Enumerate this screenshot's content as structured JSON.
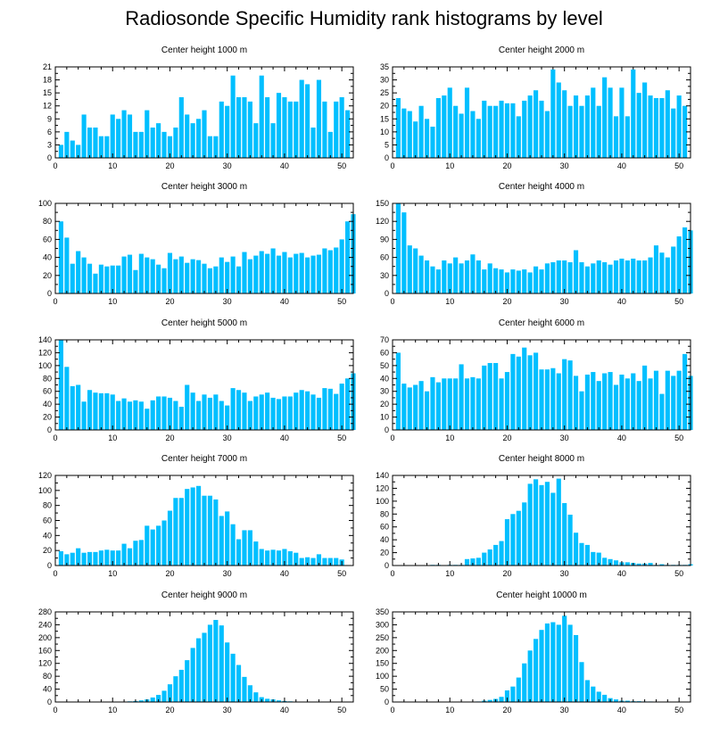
{
  "figure": {
    "title": "Radiosonde Specific Humidity rank histograms by level"
  },
  "colors": {
    "bar": "#00BFFF",
    "axis": "#000000"
  },
  "chart_data": [
    {
      "type": "bar",
      "title": "Center height 1000 m",
      "xlim": [
        0,
        52
      ],
      "ylim": [
        0,
        21
      ],
      "xticks": [
        0,
        10,
        20,
        30,
        40,
        50
      ],
      "yticks": [
        0,
        3,
        6,
        9,
        12,
        15,
        18,
        21
      ],
      "values": [
        3,
        6,
        4,
        3,
        10,
        7,
        7,
        5,
        5,
        10,
        9,
        11,
        10,
        6,
        6,
        11,
        7,
        8,
        6,
        5,
        7,
        14,
        10,
        8,
        9,
        11,
        5,
        5,
        13,
        12,
        19,
        14,
        14,
        13,
        8,
        19,
        14,
        8,
        15,
        14,
        13,
        13,
        18,
        17,
        7,
        18,
        13,
        6,
        13,
        14,
        11
      ]
    },
    {
      "type": "bar",
      "title": "Center height 2000 m",
      "xlim": [
        0,
        52
      ],
      "ylim": [
        0,
        35
      ],
      "xticks": [
        0,
        10,
        20,
        30,
        40,
        50
      ],
      "yticks": [
        0,
        5,
        10,
        15,
        20,
        25,
        30,
        35
      ],
      "values": [
        23,
        19,
        18,
        14,
        20,
        15,
        12,
        23,
        24,
        27,
        20,
        17,
        27,
        18,
        15,
        22,
        20,
        20,
        22,
        21,
        21,
        16,
        22,
        24,
        26,
        22,
        18,
        34,
        29,
        26,
        20,
        24,
        20,
        24,
        27,
        20,
        31,
        27,
        16,
        27,
        16,
        34,
        25,
        29,
        24,
        23,
        23,
        26,
        19,
        24,
        20
      ]
    },
    {
      "type": "bar",
      "title": "Center height 3000 m",
      "xlim": [
        0,
        52
      ],
      "ylim": [
        0,
        100
      ],
      "xticks": [
        0,
        10,
        20,
        30,
        40,
        50
      ],
      "yticks": [
        0,
        20,
        40,
        60,
        80,
        100
      ],
      "values": [
        80,
        62,
        33,
        47,
        40,
        33,
        22,
        32,
        30,
        31,
        31,
        41,
        43,
        26,
        44,
        40,
        38,
        32,
        28,
        45,
        38,
        41,
        34,
        38,
        37,
        33,
        28,
        30,
        40,
        35,
        41,
        30,
        46,
        38,
        42,
        47,
        44,
        50,
        42,
        46,
        40,
        44,
        45,
        40,
        42,
        43,
        50,
        48,
        51,
        60,
        80,
        88
      ]
    },
    {
      "type": "bar",
      "title": "Center height 4000 m",
      "xlim": [
        0,
        52
      ],
      "ylim": [
        0,
        150
      ],
      "xticks": [
        0,
        10,
        20,
        30,
        40,
        50
      ],
      "yticks": [
        0,
        30,
        60,
        90,
        120,
        150
      ],
      "values": [
        150,
        135,
        80,
        75,
        63,
        55,
        45,
        40,
        55,
        50,
        60,
        50,
        55,
        65,
        55,
        40,
        50,
        42,
        40,
        35,
        40,
        38,
        40,
        35,
        45,
        40,
        50,
        52,
        55,
        55,
        52,
        72,
        52,
        45,
        50,
        55,
        52,
        48,
        55,
        58,
        55,
        58,
        55,
        55,
        60,
        80,
        68,
        60,
        78,
        95,
        110,
        105
      ]
    },
    {
      "type": "bar",
      "title": "Center height 5000 m",
      "xlim": [
        0,
        52
      ],
      "ylim": [
        0,
        140
      ],
      "xticks": [
        0,
        10,
        20,
        30,
        40,
        50
      ],
      "yticks": [
        0,
        20,
        40,
        60,
        80,
        100,
        120,
        140
      ],
      "values": [
        140,
        98,
        68,
        70,
        44,
        62,
        58,
        57,
        57,
        55,
        45,
        49,
        44,
        46,
        44,
        33,
        46,
        52,
        52,
        50,
        45,
        36,
        70,
        58,
        45,
        55,
        50,
        55,
        45,
        38,
        65,
        62,
        58,
        45,
        52,
        55,
        58,
        50,
        48,
        52,
        52,
        58,
        62,
        60,
        55,
        50,
        65,
        64,
        56,
        72,
        80,
        88
      ]
    },
    {
      "type": "bar",
      "title": "Center height 6000 m",
      "xlim": [
        0,
        52
      ],
      "ylim": [
        0,
        70
      ],
      "xticks": [
        0,
        10,
        20,
        30,
        40,
        50
      ],
      "yticks": [
        0,
        10,
        20,
        30,
        40,
        50,
        60,
        70
      ],
      "values": [
        60,
        36,
        33,
        35,
        38,
        30,
        41,
        37,
        40,
        40,
        40,
        51,
        40,
        41,
        40,
        50,
        52,
        52,
        40,
        45,
        59,
        57,
        64,
        58,
        60,
        47,
        47,
        48,
        44,
        55,
        54,
        42,
        30,
        43,
        45,
        38,
        44,
        45,
        35,
        43,
        40,
        44,
        38,
        50,
        40,
        46,
        28,
        46,
        42,
        46,
        59,
        42
      ]
    },
    {
      "type": "bar",
      "title": "Center height 7000 m",
      "xlim": [
        0,
        52
      ],
      "ylim": [
        0,
        120
      ],
      "xticks": [
        0,
        10,
        20,
        30,
        40,
        50
      ],
      "yticks": [
        0,
        20,
        40,
        60,
        80,
        100,
        120
      ],
      "values": [
        19,
        15,
        17,
        23,
        17,
        18,
        18,
        20,
        21,
        20,
        20,
        29,
        23,
        33,
        34,
        53,
        48,
        53,
        60,
        73,
        90,
        90,
        102,
        104,
        106,
        93,
        93,
        88,
        66,
        72,
        55,
        35,
        47,
        47,
        32,
        22,
        20,
        21,
        20,
        22,
        19,
        17,
        10,
        11,
        10,
        15,
        10,
        10,
        10,
        8
      ]
    },
    {
      "type": "bar",
      "title": "Center height 8000 m",
      "xlim": [
        0,
        52
      ],
      "ylim": [
        0,
        140
      ],
      "xticks": [
        0,
        10,
        20,
        30,
        40,
        50
      ],
      "yticks": [
        0,
        20,
        40,
        60,
        80,
        100,
        120,
        140
      ],
      "values": [
        0,
        0,
        0,
        0,
        0,
        0,
        1,
        1,
        0,
        1,
        1,
        1,
        10,
        11,
        12,
        20,
        25,
        32,
        38,
        72,
        80,
        85,
        98,
        127,
        134,
        125,
        130,
        113,
        135,
        97,
        79,
        51,
        35,
        32,
        21,
        20,
        12,
        10,
        8,
        5,
        5,
        4,
        3,
        3,
        4,
        1,
        2,
        1,
        1,
        1,
        1,
        2
      ]
    },
    {
      "type": "bar",
      "title": "Center height 9000 m",
      "xlim": [
        0,
        52
      ],
      "ylim": [
        0,
        280
      ],
      "xticks": [
        0,
        10,
        20,
        30,
        40,
        50
      ],
      "yticks": [
        0,
        40,
        80,
        120,
        160,
        200,
        240,
        280
      ],
      "values": [
        0,
        0,
        0,
        0,
        0,
        0,
        0,
        0,
        0,
        0,
        0,
        0,
        2,
        3,
        5,
        8,
        14,
        22,
        35,
        55,
        80,
        100,
        130,
        168,
        198,
        215,
        240,
        255,
        238,
        185,
        150,
        115,
        78,
        52,
        30,
        15,
        10,
        8,
        5,
        3,
        2,
        1,
        1,
        1,
        0,
        0,
        0,
        0,
        0,
        0,
        0,
        0
      ]
    },
    {
      "type": "bar",
      "title": "Center height 10000 m",
      "xlim": [
        0,
        52
      ],
      "ylim": [
        0,
        350
      ],
      "xticks": [
        0,
        10,
        20,
        30,
        40,
        50
      ],
      "yticks": [
        0,
        50,
        100,
        150,
        200,
        250,
        300,
        350
      ],
      "values": [
        0,
        0,
        0,
        0,
        0,
        0,
        0,
        0,
        0,
        0,
        0,
        0,
        0,
        0,
        2,
        5,
        8,
        12,
        20,
        45,
        60,
        95,
        150,
        200,
        245,
        280,
        305,
        310,
        300,
        335,
        300,
        260,
        155,
        85,
        60,
        40,
        28,
        15,
        10,
        5,
        5,
        3,
        3,
        2,
        2,
        0,
        0,
        1,
        0,
        0,
        0,
        0
      ]
    }
  ]
}
